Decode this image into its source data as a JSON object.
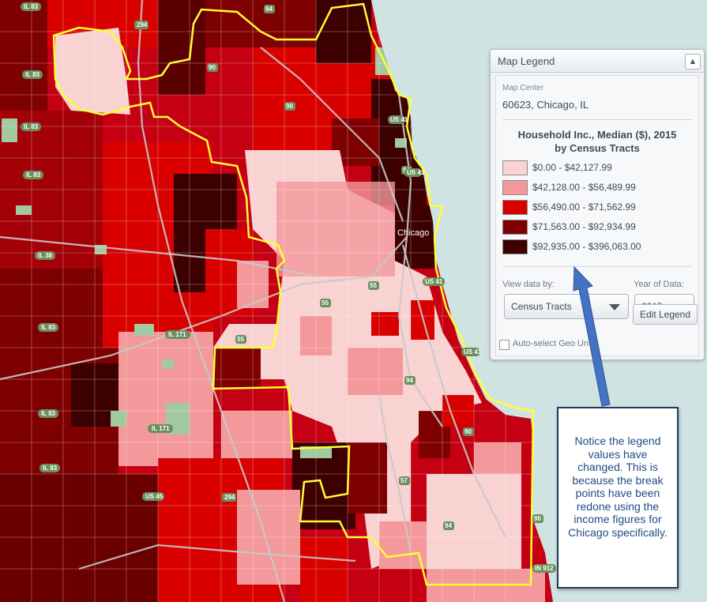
{
  "map": {
    "city_label": "Chicago",
    "road_shields": [
      "IL 83",
      "IL 83",
      "IL 83",
      "IL 83",
      "IL 38",
      "IL 83",
      "IL 83",
      "IL 83",
      "IL 171",
      "IL 171",
      "US 45",
      "294",
      "294",
      "90",
      "90",
      "94",
      "94",
      "94",
      "90",
      "94",
      "55",
      "55",
      "55",
      "57",
      "US 41",
      "US 41",
      "US 41",
      "US 41",
      "IN 912",
      "90"
    ]
  },
  "legend": {
    "header_title": "Map Legend",
    "collapse_icon": "chevron-up-icon",
    "map_center_label": "Map Center",
    "map_center_value": "60623, Chicago, IL",
    "title_line1": "Household Inc., Median ($), 2015",
    "title_line2": "by Census Tracts",
    "classes": [
      {
        "label": "$0.00 - $42,127.99",
        "color": "#f9d2d2"
      },
      {
        "label": "$42,128.00 - $56,489.99",
        "color": "#f3999b"
      },
      {
        "label": "$56,490.00 - $71,562.99",
        "color": "#d90000"
      },
      {
        "label": "$71,563.00 - $92,934.99",
        "color": "#7f0000"
      },
      {
        "label": "$92,935.00 - $396,063.00",
        "color": "#3c0000"
      }
    ],
    "view_by_label": "View data by:",
    "view_by_value": "Census Tracts",
    "year_label": "Year of Data:",
    "year_value": "2015",
    "auto_select_label": "Auto-select Geo Un",
    "edit_button": "Edit Legend"
  },
  "callout": {
    "text": "Notice the legend values have changed. This is because the break points have been redone using the income figures for Chicago specifically."
  },
  "colors": {
    "lake": "#cfe3e3",
    "boundary": "#ffff33",
    "arrow": "#4472c4",
    "callout_border": "#1f3a5f"
  }
}
